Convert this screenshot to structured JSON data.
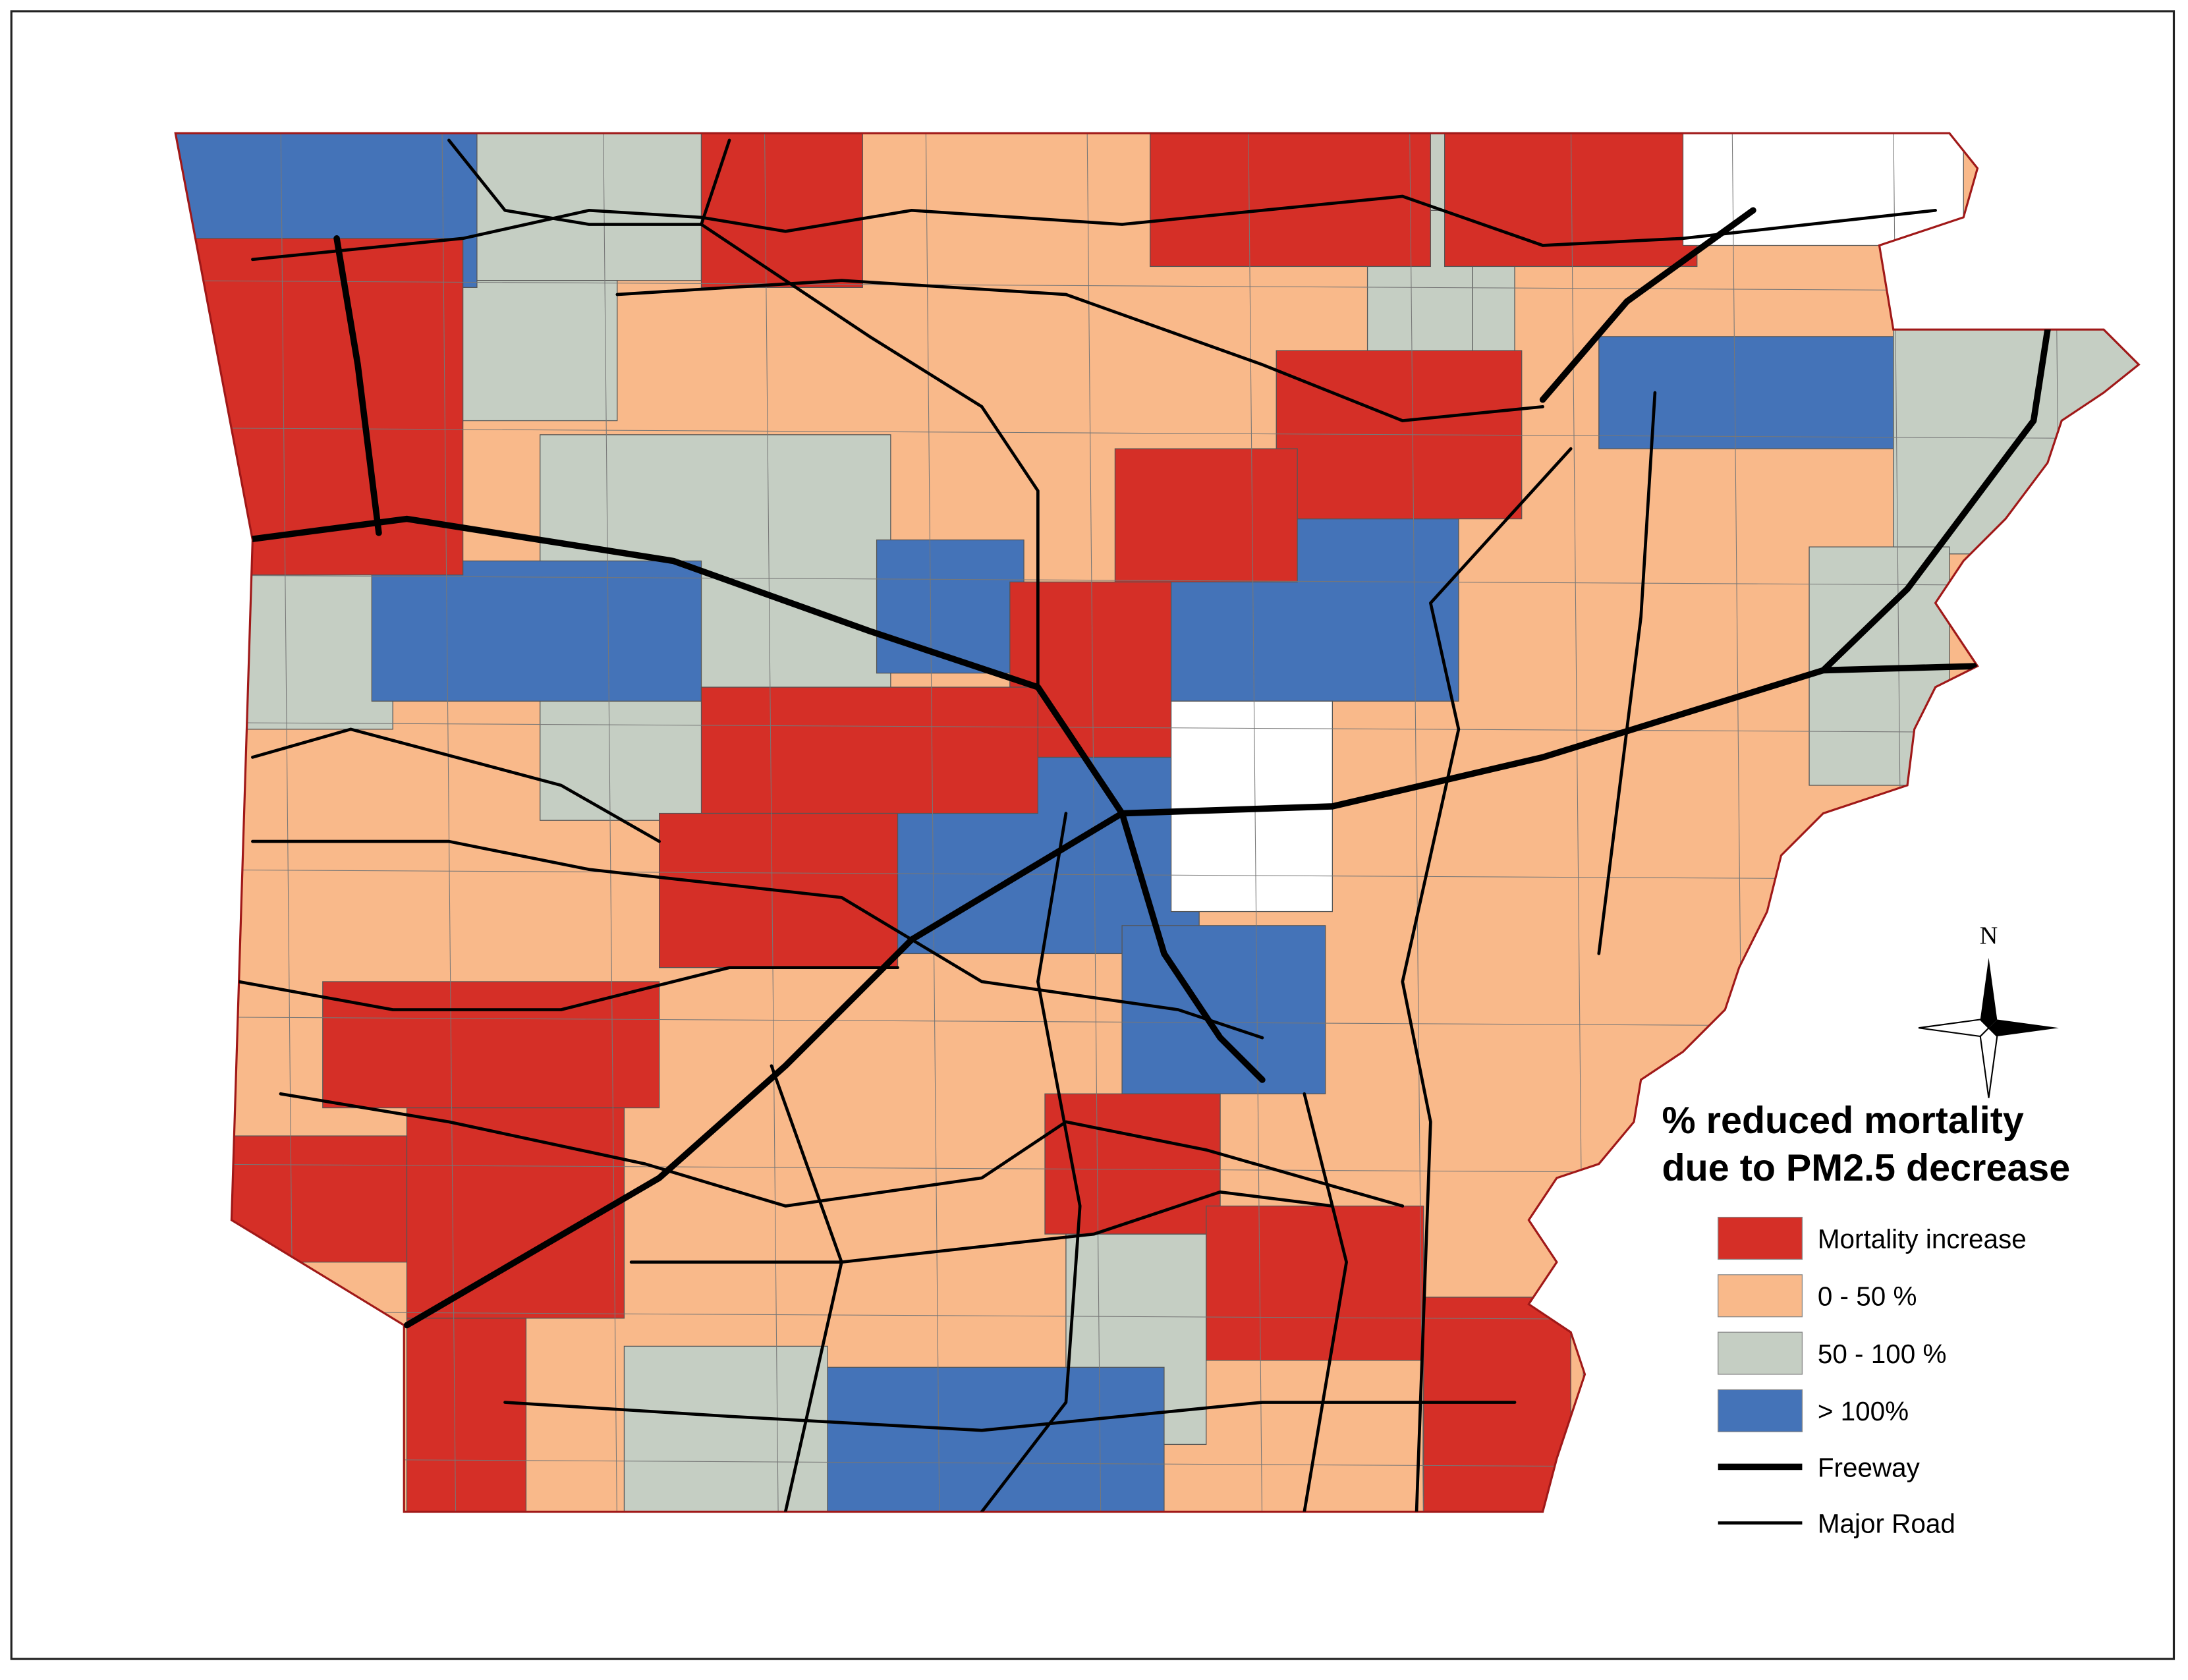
{
  "legend": {
    "title": [
      "% reduced mortality",
      "due to PM2.5 decrease"
    ],
    "classes": [
      {
        "label": "Mortality increase",
        "color": "#d52f27"
      },
      {
        "label": "0 - 50 %",
        "color": "#f9b98a"
      },
      {
        "label": "50 - 100 %",
        "color": "#c5cec3"
      },
      {
        "label": "> 100%",
        "color": "#4473b8"
      }
    ],
    "lines": [
      {
        "label": "Freeway"
      },
      {
        "label": "Major Road"
      }
    ]
  },
  "north_arrow": "N"
}
